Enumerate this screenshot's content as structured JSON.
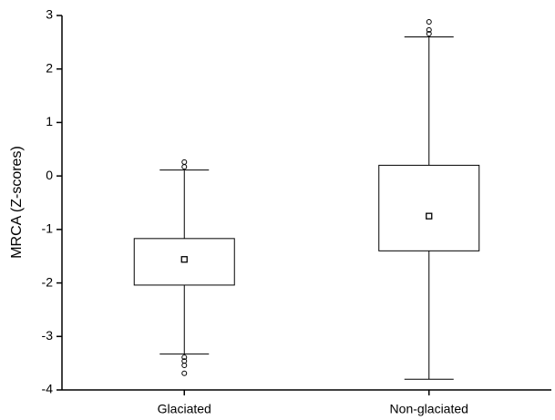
{
  "chart_data": {
    "type": "box",
    "y_label": "MRCA (Z-scores)",
    "categories": [
      "Glaciated",
      "Non-glaciated"
    ],
    "boxes": [
      {
        "whisker_low": -3.33,
        "q1": -2.04,
        "q3": -1.17,
        "whisker_high": 0.11,
        "mean": -1.56,
        "outliers": [
          0.26,
          0.17,
          -3.39,
          -3.46,
          -3.54,
          -3.69
        ]
      },
      {
        "whisker_low": -3.8,
        "q1": -1.4,
        "q3": 0.2,
        "whisker_high": 2.6,
        "mean": -0.75,
        "outliers": [
          2.88,
          2.73,
          2.66
        ]
      }
    ],
    "ylim": [
      -4,
      3
    ],
    "yticks": [
      3,
      2,
      1,
      0,
      -1,
      -2,
      -3,
      -4
    ],
    "color": "#000000"
  }
}
